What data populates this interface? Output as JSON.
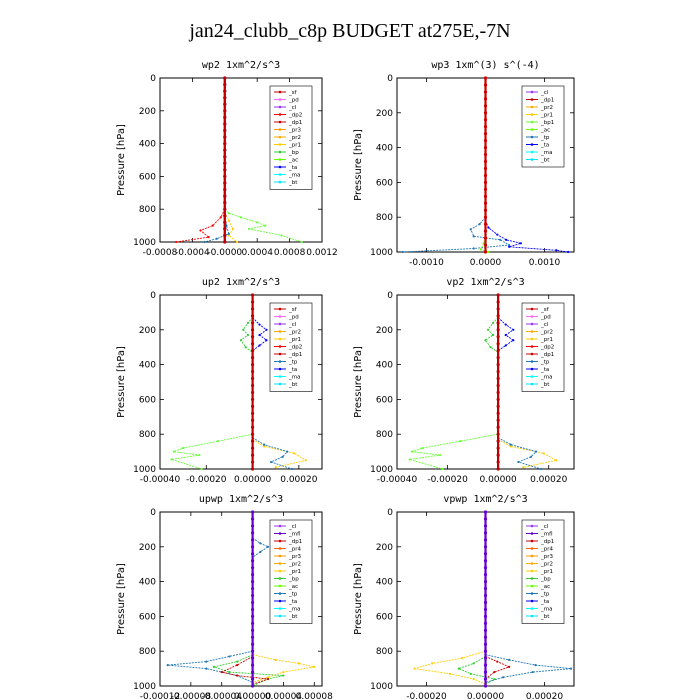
{
  "title": "jan24_clubb_c8p  BUDGET at275E,-7N",
  "colors": {
    "sf": "#c00000",
    "pd": "#ff66ff",
    "cl": "#9933ff",
    "dp1": "#cc0000",
    "dp2": "#ff0000",
    "mfl": "#6600cc",
    "pr1": "#ffcc00",
    "pr2": "#ffaa00",
    "pr3": "#ff9900",
    "pr4": "#ff6600",
    "bp": "#33cc33",
    "bp1": "#66ff33",
    "ac": "#66ff00",
    "tp": "#1f77b4",
    "ta": "#0000ff",
    "ma": "#00ffff",
    "bt": "#00e5ff"
  },
  "chart_data": [
    {
      "type": "line",
      "title": "wp2   1xm^2/s^3",
      "ylabel": "Pressure [hPa]",
      "ylim": [
        1000,
        0
      ],
      "xlim": [
        -0.0008,
        0.0012
      ],
      "xticks": [
        "-0.0008",
        "-0.0004",
        "-0.0000",
        "0.0004",
        "0.0008",
        "0.0012"
      ],
      "xtick_values": [
        -0.0008,
        -0.0004,
        0.0,
        0.0004,
        0.0008,
        0.0012
      ],
      "yticks": [
        "0",
        "200",
        "400",
        "600",
        "800",
        "1000"
      ],
      "legend": [
        "_sf",
        "_pd",
        "_cl",
        "_dp2",
        "_dp1",
        "_pr3",
        "_pr2",
        "_pr1",
        "_bp",
        "_ac",
        "_ta",
        "_ma",
        "_bt"
      ],
      "series": [
        {
          "name": "_bp",
          "key": "bp1",
          "x": [
            0,
            5e-05,
            0.0002,
            0.0004,
            0.0005,
            0.0003,
            0.0007,
            0.00095
          ],
          "y": [
            800,
            825,
            850,
            880,
            900,
            920,
            960,
            1000
          ]
        },
        {
          "name": "_dp1",
          "key": "dp2",
          "x": [
            0,
            -5e-05,
            -0.00015,
            -0.0003,
            -0.0002,
            -0.0006
          ],
          "y": [
            800,
            850,
            900,
            930,
            970,
            1000
          ]
        },
        {
          "name": "_pr1",
          "key": "pr1",
          "x": [
            0,
            5e-05,
            0.0001,
            5e-05,
            0.00015
          ],
          "y": [
            820,
            870,
            920,
            960,
            1000
          ]
        },
        {
          "name": "_ta",
          "key": "tp",
          "x": [
            0,
            2e-05,
            5e-05,
            -0.0001,
            -0.00025
          ],
          "y": [
            850,
            900,
            950,
            980,
            1000
          ]
        },
        {
          "name": "_cl",
          "key": "cl",
          "x": [
            0.0,
            0.0
          ],
          "y": [
            0,
            1000
          ]
        },
        {
          "name": "_sf",
          "key": "sf",
          "x": [
            0.0,
            0.0
          ],
          "y": [
            0,
            1000
          ]
        }
      ]
    },
    {
      "type": "line",
      "title": "wp3   1xm^(3) s^(-4)",
      "ylabel": "Pressure [hPa]",
      "ylim": [
        1000,
        0
      ],
      "xlim": [
        -0.0015,
        0.0015
      ],
      "xticks": [
        "-0.0010",
        "0.0000",
        "0.0010"
      ],
      "xtick_values": [
        -0.001,
        0.0,
        0.001
      ],
      "yticks": [
        "0",
        "200",
        "400",
        "600",
        "800",
        "1000"
      ],
      "legend": [
        "_cl",
        "_dp1",
        "_pr2",
        "_pr1",
        "_bp1",
        "_ac",
        "_tp",
        "_ta",
        "_ma",
        "_bt"
      ],
      "series": [
        {
          "name": "_tp",
          "key": "tp",
          "x": [
            0,
            -0.0001,
            -0.00025,
            -0.0002,
            0.00025,
            0.0004,
            -0.0002,
            -0.0014
          ],
          "y": [
            800,
            840,
            870,
            910,
            930,
            960,
            980,
            1000
          ]
        },
        {
          "name": "_ta",
          "key": "ta",
          "x": [
            0,
            5e-05,
            0.0002,
            0.00035,
            0.0006,
            0.0004,
            0.0012,
            0.0014
          ],
          "y": [
            820,
            860,
            900,
            930,
            950,
            970,
            990,
            1000
          ]
        },
        {
          "name": "_ac",
          "key": "ac",
          "x": [
            0,
            -3e-05,
            -8e-05,
            5e-05
          ],
          "y": [
            900,
            950,
            985,
            1000
          ]
        },
        {
          "name": "_cl",
          "key": "dp1",
          "x": [
            0.0,
            0.0
          ],
          "y": [
            0,
            1000
          ]
        }
      ]
    },
    {
      "type": "line",
      "title": "up2   1xm^2/s^3",
      "ylabel": "Pressure [hPa]",
      "ylim": [
        1000,
        0
      ],
      "xlim": [
        -0.0004,
        0.0003
      ],
      "xticks": [
        "-0.00040",
        "-0.00020",
        "0.00000",
        "0.00020"
      ],
      "xtick_values": [
        -0.0004,
        -0.0002,
        0.0,
        0.0002
      ],
      "yticks": [
        "0",
        "200",
        "400",
        "600",
        "800",
        "1000"
      ],
      "legend": [
        "_sf",
        "_pd",
        "_cl",
        "_pr2",
        "_pr1",
        "_dp2",
        "_dp1",
        "_tp",
        "_ta",
        "_ma",
        "_bt"
      ],
      "series": [
        {
          "name": "_dp2",
          "key": "bp1",
          "x": [
            0,
            -0.00015,
            -0.0003,
            -0.00034,
            -0.00023,
            -0.00035,
            -0.00022
          ],
          "y": [
            800,
            840,
            880,
            900,
            920,
            945,
            1000
          ]
        },
        {
          "name": "_dp1",
          "key": "bp",
          "x": [
            0,
            -2e-05,
            -4e-05,
            -2e-05,
            -5e-05,
            -3e-05,
            0
          ],
          "y": [
            130,
            160,
            200,
            230,
            260,
            300,
            330
          ]
        },
        {
          "name": "_pr1",
          "key": "pr1",
          "x": [
            0,
            5e-05,
            0.00018,
            0.00023,
            0.0001
          ],
          "y": [
            830,
            870,
            910,
            950,
            990
          ]
        },
        {
          "name": "_tp",
          "key": "tp",
          "x": [
            0,
            5e-05,
            0.00015,
            0.00013,
            8e-05,
            0.00017
          ],
          "y": [
            820,
            860,
            900,
            930,
            960,
            1000
          ]
        },
        {
          "name": "_ta",
          "key": "ta",
          "x": [
            0,
            3e-05,
            6e-05,
            3e-05,
            6e-05,
            3e-05,
            0
          ],
          "y": [
            130,
            170,
            200,
            230,
            260,
            290,
            320
          ]
        },
        {
          "name": "_sf",
          "key": "sf",
          "x": [
            0.0,
            0.0
          ],
          "y": [
            0,
            1000
          ]
        }
      ]
    },
    {
      "type": "line",
      "title": "vp2   1xm^2/s^3",
      "ylabel": "Pressure [hPa]",
      "ylim": [
        1000,
        0
      ],
      "xlim": [
        -0.0004,
        0.0003
      ],
      "xticks": [
        "-0.00040",
        "-0.00020",
        "0.00000",
        "0.00020"
      ],
      "xtick_values": [
        -0.0004,
        -0.0002,
        0.0,
        0.0002
      ],
      "yticks": [
        "0",
        "200",
        "400",
        "600",
        "800",
        "1000"
      ],
      "legend": [
        "_sf",
        "_pd",
        "_cl",
        "_pr2",
        "_pr1",
        "_dp2",
        "_dp1",
        "_tp",
        "_ta",
        "_ma",
        "_bt"
      ],
      "series": [
        {
          "name": "_dp2",
          "key": "bp1",
          "x": [
            0,
            -0.00015,
            -0.0003,
            -0.00034,
            -0.00023,
            -0.00035,
            -0.00022
          ],
          "y": [
            800,
            840,
            880,
            900,
            920,
            945,
            1000
          ]
        },
        {
          "name": "_dp1",
          "key": "bp",
          "x": [
            0,
            -2e-05,
            -4e-05,
            -2e-05,
            -5e-05,
            -3e-05,
            0
          ],
          "y": [
            130,
            160,
            200,
            230,
            260,
            300,
            330
          ]
        },
        {
          "name": "_pr1",
          "key": "pr1",
          "x": [
            0,
            5e-05,
            0.00018,
            0.00023,
            0.0001
          ],
          "y": [
            830,
            870,
            910,
            950,
            990
          ]
        },
        {
          "name": "_tp",
          "key": "tp",
          "x": [
            0,
            5e-05,
            0.00015,
            0.00013,
            8e-05,
            0.00017
          ],
          "y": [
            820,
            860,
            900,
            930,
            960,
            1000
          ]
        },
        {
          "name": "_ta",
          "key": "ta",
          "x": [
            0,
            3e-05,
            6e-05,
            3e-05,
            6e-05,
            3e-05,
            0
          ],
          "y": [
            130,
            170,
            200,
            230,
            260,
            290,
            320
          ]
        },
        {
          "name": "_sf",
          "key": "sf",
          "x": [
            0.0,
            0.0
          ],
          "y": [
            0,
            1000
          ]
        }
      ]
    },
    {
      "type": "line",
      "title": "upwp   1xm^2/s^3",
      "ylabel": "Pressure [hPa]",
      "ylim": [
        1000,
        0
      ],
      "xlim": [
        -0.00012,
        9e-05
      ],
      "xticks": [
        "-0.00012",
        "-0.00008",
        "-0.00004",
        "0.00000",
        "0.00004",
        "0.00008"
      ],
      "xtick_values": [
        -0.00012,
        -8e-05,
        -4e-05,
        0.0,
        4e-05,
        8e-05
      ],
      "yticks": [
        "0",
        "200",
        "400",
        "600",
        "800",
        "1000"
      ],
      "legend": [
        "_cl",
        "_mfl",
        "_dp1",
        "_pr4",
        "_pr3",
        "_pr2",
        "_pr1",
        "_bp",
        "_ac",
        "_tp",
        "_ta",
        "_ma",
        "_bt"
      ],
      "series": [
        {
          "name": "_tp",
          "key": "tp",
          "x": [
            0,
            -3e-05,
            -6e-05,
            -0.00011,
            -6e-05,
            -2e-05,
            0
          ],
          "y": [
            800,
            830,
            860,
            880,
            900,
            940,
            980
          ]
        },
        {
          "name": "_pr1",
          "key": "pr1",
          "x": [
            0,
            3e-05,
            6e-05,
            8e-05,
            4e-05,
            2e-05,
            0
          ],
          "y": [
            820,
            850,
            870,
            890,
            920,
            950,
            980
          ]
        },
        {
          "name": "_bp",
          "key": "bp",
          "x": [
            0,
            -2e-05,
            -5e-05,
            -3e-05,
            4e-05,
            2e-05,
            0
          ],
          "y": [
            820,
            860,
            890,
            920,
            940,
            960,
            1000
          ]
        },
        {
          "name": "_dp1",
          "key": "dp1",
          "x": [
            0,
            -2e-05,
            -4e-05,
            -2e-05,
            2e-05,
            0
          ],
          "y": [
            830,
            880,
            920,
            940,
            960,
            990
          ]
        },
        {
          "name": "_ta",
          "key": "tp",
          "x": [
            0,
            1e-05,
            2e-05,
            1e-05,
            0
          ],
          "y": [
            150,
            180,
            200,
            230,
            260
          ]
        },
        {
          "name": "_cl",
          "key": "mfl",
          "x": [
            0.0,
            0.0
          ],
          "y": [
            0,
            1000
          ]
        }
      ]
    },
    {
      "type": "line",
      "title": "vpwp   1xm^2/s^3",
      "ylabel": "Pressure [hPa]",
      "ylim": [
        1000,
        0
      ],
      "xlim": [
        -0.0003,
        0.0003
      ],
      "xticks": [
        "-0.00020",
        "0.00000",
        "0.00020"
      ],
      "xtick_values": [
        -0.0002,
        0.0,
        0.0002
      ],
      "yticks": [
        "0",
        "200",
        "400",
        "600",
        "800",
        "1000"
      ],
      "legend": [
        "_cl",
        "_mfl",
        "_dp1",
        "_pr4",
        "_pr3",
        "_pr2",
        "_pr1",
        "_bp",
        "_ac",
        "_tp",
        "_ta",
        "_ma",
        "_bt"
      ],
      "series": [
        {
          "name": "_pr1",
          "key": "pr1",
          "x": [
            0,
            -8e-05,
            -0.00018,
            -0.00024,
            -0.00012,
            -4e-05,
            0
          ],
          "y": [
            800,
            840,
            870,
            900,
            930,
            960,
            990
          ]
        },
        {
          "name": "_tp",
          "key": "tp",
          "x": [
            0,
            8e-05,
            0.00017,
            0.00029,
            0.00016,
            6e-05,
            0
          ],
          "y": [
            820,
            850,
            880,
            900,
            920,
            950,
            980
          ]
        },
        {
          "name": "_bp",
          "key": "bp",
          "x": [
            0,
            -4e-05,
            -9e-05,
            -5e-05,
            3e-05,
            0
          ],
          "y": [
            830,
            870,
            900,
            930,
            960,
            990
          ]
        },
        {
          "name": "_dp1",
          "key": "dp1",
          "x": [
            0,
            4e-05,
            8e-05,
            3e-05,
            0
          ],
          "y": [
            830,
            860,
            890,
            920,
            960
          ]
        },
        {
          "name": "_cl",
          "key": "mfl",
          "x": [
            0.0,
            0.0
          ],
          "y": [
            0,
            1000
          ]
        }
      ]
    }
  ]
}
